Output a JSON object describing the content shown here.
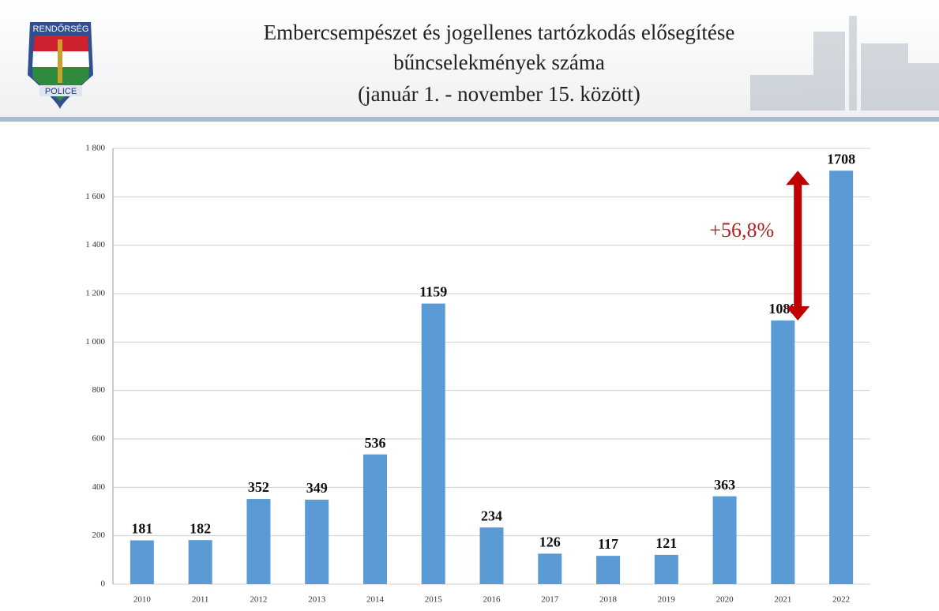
{
  "logo": {
    "top": "RENDŐRSÉG",
    "bottom": "POLICE"
  },
  "chart_data": {
    "type": "bar",
    "title": [
      "Embercsempészet és jogellenes tartózkodás elősegítése",
      "bűncselekmények száma",
      "(január 1. - november 15. között)"
    ],
    "categories": [
      "2010",
      "2011",
      "2012",
      "2013",
      "2014",
      "2015",
      "2016",
      "2017",
      "2018",
      "2019",
      "2020",
      "2021",
      "2022"
    ],
    "values": [
      181,
      182,
      352,
      349,
      536,
      1159,
      234,
      126,
      117,
      121,
      363,
      1089,
      1708
    ],
    "color": "#5b9bd5",
    "ylim": [
      0,
      1800
    ],
    "yticks": [
      0,
      200,
      400,
      600,
      800,
      {
        "value": 1000,
        "label": "1 000"
      },
      {
        "value": 1200,
        "label": "1 200"
      },
      {
        "value": 1400,
        "label": "1 400"
      },
      {
        "value": 1600,
        "label": "1 600"
      },
      {
        "value": 1800,
        "label": "1 800"
      }
    ],
    "grid": true,
    "annotations": [
      {
        "text": "+56,8%",
        "color": "#b22222",
        "arrow_color": "#c00000"
      }
    ]
  }
}
